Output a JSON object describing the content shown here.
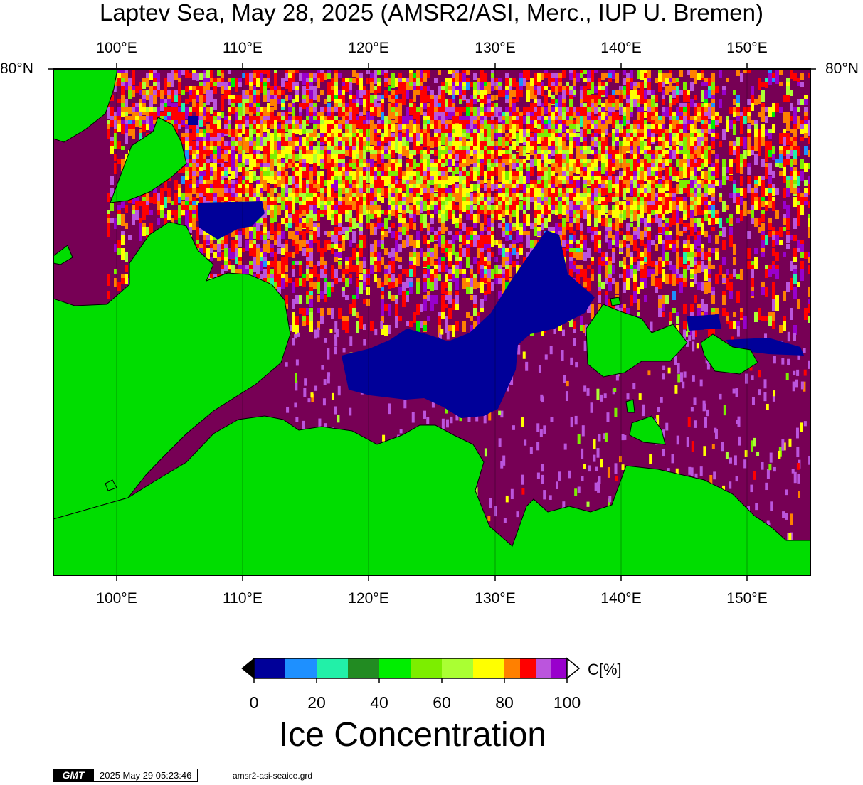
{
  "title": "Laptev Sea, May 28, 2025 (AMSR2/ASI, Merc., IUP U. Bremen)",
  "map": {
    "lon_range": [
      95,
      155
    ],
    "lat_label": "80°N",
    "lon_ticks": [
      {
        "lon": 100,
        "label": "100°E"
      },
      {
        "lon": 110,
        "label": "110°E"
      },
      {
        "lon": 120,
        "label": "120°E"
      },
      {
        "lon": 130,
        "label": "130°E"
      },
      {
        "lon": 140,
        "label": "140°E"
      },
      {
        "lon": 150,
        "label": "150°E"
      }
    ],
    "colors": {
      "land": "#00dd00",
      "open_water": "#000099",
      "full_ice": "#770055",
      "border": "#000000"
    }
  },
  "colorbar": {
    "unit": "C[%]",
    "title": "Ice Concentration",
    "range": [
      0,
      100
    ],
    "labels": [
      "0",
      "20",
      "40",
      "60",
      "80",
      "100"
    ],
    "bins": [
      {
        "from": 0,
        "to": 10,
        "color": "#000099"
      },
      {
        "from": 10,
        "to": 20,
        "color": "#1e90ff"
      },
      {
        "from": 20,
        "to": 30,
        "color": "#22f0a8"
      },
      {
        "from": 30,
        "to": 40,
        "color": "#228b22"
      },
      {
        "from": 40,
        "to": 50,
        "color": "#00ee00"
      },
      {
        "from": 50,
        "to": 60,
        "color": "#7cee00"
      },
      {
        "from": 60,
        "to": 70,
        "color": "#aaff33"
      },
      {
        "from": 70,
        "to": 80,
        "color": "#ffff00"
      },
      {
        "from": 80,
        "to": 85,
        "color": "#ff8000"
      },
      {
        "from": 85,
        "to": 90,
        "color": "#ff0000"
      },
      {
        "from": 90,
        "to": 95,
        "color": "#bb55dd"
      },
      {
        "from": 95,
        "to": 100,
        "color": "#9900cc"
      }
    ],
    "under_color": "#000000",
    "over_color": "#ffffff"
  },
  "footer": {
    "logo": "GMT",
    "timestamp": "2025 May 29 05:23:46",
    "filename": "amsr2-asi-seaice.grd"
  }
}
